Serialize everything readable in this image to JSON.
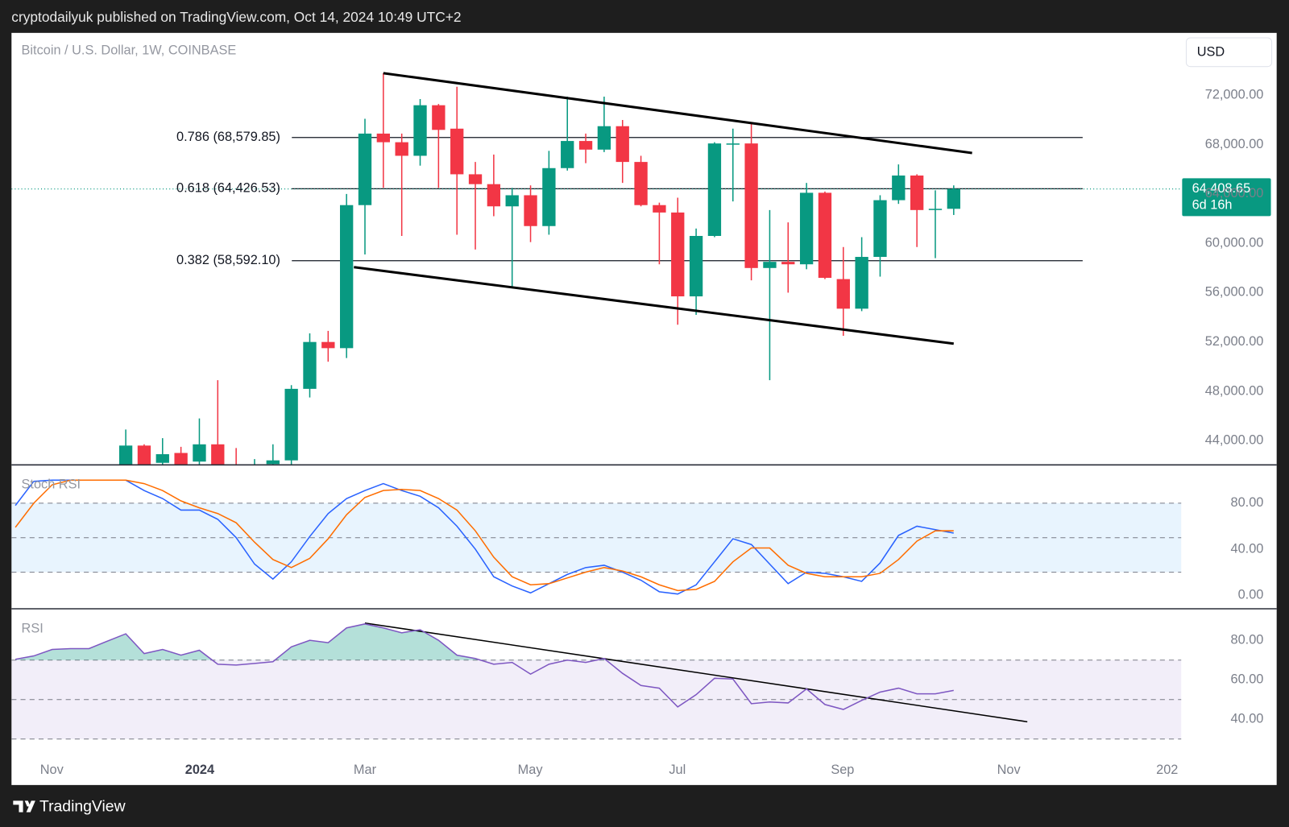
{
  "header": "cryptodailyuk published on TradingView.com, Oct 14, 2024 10:49 UTC+2",
  "footer": "TradingView",
  "chart_data": [
    {
      "type": "candlestick",
      "title": "Bitcoin / U.S. Dollar, 1W, COINBASE",
      "currency": "USD",
      "x": [
        0,
        1,
        2,
        3,
        4,
        5,
        6,
        7,
        8,
        9,
        10,
        11,
        12,
        13,
        14,
        15,
        16,
        17,
        18,
        19,
        20,
        21,
        22,
        23,
        24,
        25,
        26,
        27,
        28,
        29,
        30,
        31,
        32,
        33,
        34,
        35,
        36,
        37,
        38,
        39,
        40,
        41,
        42,
        43,
        44,
        45
      ],
      "open": [
        41500,
        43600,
        42200,
        43000,
        42300,
        43700,
        41700,
        39600,
        42100,
        42400,
        48200,
        52000,
        51500,
        63100,
        68900,
        68200,
        67100,
        71200,
        69300,
        65600,
        64800,
        63000,
        63900,
        61400,
        66100,
        68300,
        67600,
        69500,
        66600,
        63100,
        62500,
        55700,
        60600,
        68000,
        68100,
        58000,
        58500,
        58300,
        64100,
        57100,
        54700,
        58900,
        63500,
        65500,
        62700,
        62800
      ],
      "high": [
        44900,
        43700,
        44200,
        43500,
        45800,
        48900,
        43400,
        42500,
        43700,
        48500,
        52700,
        52900,
        64000,
        70100,
        73800,
        68900,
        71700,
        71300,
        72700,
        66600,
        67200,
        64500,
        64700,
        67500,
        71900,
        68900,
        71900,
        70000,
        67100,
        63300,
        63700,
        61200,
        68200,
        69300,
        69800,
        62700,
        61700,
        64900,
        64200,
        59700,
        60500,
        63900,
        66400,
        65600,
        64300,
        64700
      ],
      "low": [
        40500,
        40200,
        40600,
        40800,
        40500,
        40000,
        38500,
        38500,
        41600,
        42000,
        47500,
        50400,
        50700,
        59100,
        64500,
        60600,
        66300,
        64500,
        60700,
        59500,
        62200,
        56400,
        60100,
        60700,
        65900,
        66500,
        67400,
        64900,
        63000,
        58300,
        53400,
        54200,
        60500,
        63400,
        57000,
        48900,
        56000,
        57900,
        57100,
        52500,
        54500,
        57300,
        63200,
        59700,
        58800,
        62300
      ],
      "close": [
        43600,
        41700,
        42900,
        41900,
        43700,
        41800,
        39600,
        41800,
        42400,
        48200,
        52000,
        51500,
        63100,
        68900,
        68200,
        67100,
        71200,
        69200,
        65600,
        64800,
        63000,
        63900,
        61400,
        66100,
        68300,
        67600,
        69500,
        66600,
        63100,
        62500,
        55700,
        60600,
        68100,
        68100,
        58000,
        58500,
        58300,
        64100,
        57200,
        54700,
        58900,
        63500,
        65500,
        62700,
        62800,
        64408.65
      ],
      "up_color": "#089981",
      "down_color": "#f23645",
      "xlim": [
        -6.21,
        57.37
      ],
      "ylim": [
        42067,
        77067
      ],
      "yticks": [
        {
          "value": 72000,
          "label": "72,000.00"
        },
        {
          "value": 68000,
          "label": "68,000.00"
        },
        {
          "value": 64000,
          "label": "64,000.00"
        },
        {
          "value": 60000,
          "label": "60,000.00"
        },
        {
          "value": 56000,
          "label": "56,000.00"
        },
        {
          "value": 52000,
          "label": "52,000.00"
        },
        {
          "value": 48000,
          "label": "48,000.00"
        },
        {
          "value": 44000,
          "label": "44,000.00"
        }
      ],
      "fib_levels": [
        {
          "value": 68579.85,
          "label": "0.786 (68,579.85)"
        },
        {
          "value": 64426.53,
          "label": "0.618 (64,426.53)"
        },
        {
          "value": 58592.1,
          "label": "0.382 (58,592.10)"
        }
      ],
      "trendlines": [
        {
          "x": [
            14,
            46
          ],
          "y": [
            73800,
            67330
          ]
        },
        {
          "x": [
            12.4,
            45
          ],
          "y": [
            58070,
            51870
          ]
        }
      ],
      "trendline_color": "#000000",
      "last_price": {
        "value": 64408.65,
        "label": "64,408.65"
      },
      "countdown": "6d 16h"
    },
    {
      "type": "line",
      "title": "Stoch RSI",
      "x": [
        -6,
        -5,
        -4,
        -3,
        -2,
        -1,
        0,
        1,
        2,
        3,
        4,
        5,
        6,
        7,
        8,
        9,
        10,
        11,
        12,
        13,
        14,
        15,
        16,
        17,
        18,
        19,
        20,
        21,
        22,
        23,
        24,
        25,
        26,
        27,
        28,
        29,
        30,
        31,
        32,
        33,
        34,
        35,
        36,
        37,
        38,
        39,
        40,
        41,
        42,
        43,
        44,
        45
      ],
      "series": [
        {
          "color": "#2962ff",
          "values": [
            78,
            99,
            100,
            100,
            100,
            100,
            100,
            91,
            84,
            74,
            74,
            66,
            50,
            27,
            14,
            29,
            51,
            71,
            84,
            91,
            97,
            91,
            86,
            76,
            60,
            40,
            16,
            8,
            2,
            10,
            18,
            24,
            26,
            20,
            13,
            3,
            1,
            9,
            29,
            49,
            44,
            27,
            10,
            20,
            19,
            16,
            12,
            28,
            52,
            60,
            57,
            54
          ]
        },
        {
          "color": "#ff6d00",
          "values": [
            59,
            80,
            96,
            100,
            100,
            100,
            100,
            97,
            91,
            82,
            76,
            71,
            63,
            46,
            31,
            24,
            32,
            49,
            70,
            85,
            91,
            92,
            91,
            84,
            74,
            56,
            33,
            16,
            9,
            10,
            15,
            20,
            24,
            21,
            16,
            9,
            4,
            5,
            12,
            29,
            41,
            41,
            26,
            19,
            16,
            16,
            16,
            19,
            31,
            47,
            56,
            56
          ]
        }
      ],
      "xlim": [
        -6.21,
        57.37
      ],
      "ylim": [
        -11.4,
        112.9
      ],
      "yticks": [
        {
          "value": 80,
          "label": "80.00"
        },
        {
          "value": 40,
          "label": "40.00"
        },
        {
          "value": 0,
          "label": "0.00"
        }
      ],
      "band": [
        20,
        80
      ],
      "midline": 50,
      "band_color": "#2196f3"
    },
    {
      "type": "line",
      "title": "RSI",
      "x": [
        -6,
        -5,
        -4,
        -3,
        -2,
        -1,
        0,
        1,
        2,
        3,
        4,
        5,
        6,
        7,
        8,
        9,
        10,
        11,
        12,
        13,
        14,
        15,
        16,
        17,
        18,
        19,
        20,
        21,
        22,
        23,
        24,
        25,
        26,
        27,
        28,
        29,
        30,
        31,
        32,
        33,
        34,
        35,
        36,
        37,
        38,
        39,
        40,
        41,
        42,
        43,
        44,
        45
      ],
      "values": [
        70.4,
        72.1,
        75.4,
        75.8,
        75.8,
        79.6,
        83.3,
        73.3,
        75.4,
        72.5,
        75,
        67.9,
        67.5,
        68.3,
        69.2,
        76.7,
        80,
        78.8,
        86.3,
        88.3,
        86.3,
        83.8,
        85.4,
        80,
        72.5,
        70.8,
        67.9,
        68.8,
        62.9,
        67.9,
        70,
        68.8,
        70.8,
        63.3,
        57.1,
        55.8,
        46.3,
        52.5,
        60.8,
        60.4,
        47.9,
        48.8,
        48.3,
        55.4,
        47.5,
        45,
        49.6,
        53.8,
        55.8,
        52.9,
        52.9,
        54.6
      ],
      "color": "#7e57c2",
      "overbought_color": "#089981",
      "xlim": [
        -6.21,
        57.37
      ],
      "ylim": [
        24.6,
        95.8
      ],
      "yticks": [
        {
          "value": 80,
          "label": "80.00"
        },
        {
          "value": 60,
          "label": "60.00"
        },
        {
          "value": 40,
          "label": "40.00"
        }
      ],
      "band": [
        30,
        70
      ],
      "midline": 50,
      "band_color": "#7e57c2",
      "trendlines": [
        {
          "x": [
            13,
            49
          ],
          "y": [
            88.75,
            38.75
          ]
        }
      ],
      "trendline_color": "#000000",
      "xticks": [
        {
          "value": -4.02,
          "label": "Nov"
        },
        {
          "value": 4.02,
          "label": "2024",
          "bold": true
        },
        {
          "value": 13,
          "label": "Mar"
        },
        {
          "value": 21.98,
          "label": "May"
        },
        {
          "value": 29.98,
          "label": "Jul"
        },
        {
          "value": 38.96,
          "label": "Sep"
        },
        {
          "value": 47.99,
          "label": "Nov"
        },
        {
          "value": 56.6,
          "label": "202"
        }
      ]
    }
  ]
}
